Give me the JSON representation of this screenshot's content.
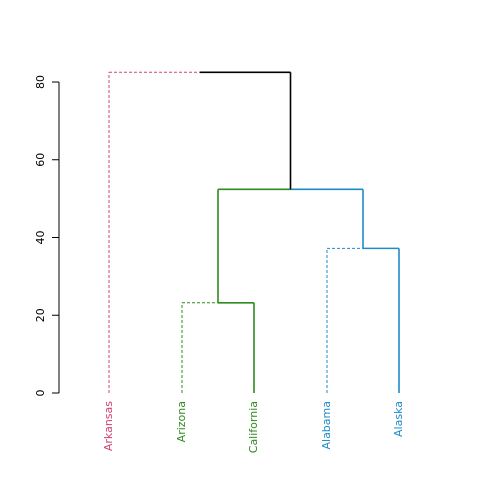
{
  "chart_data": {
    "type": "dendrogram",
    "ylim": [
      0,
      80
    ],
    "y_ticks": [
      0,
      20,
      40,
      60,
      80
    ],
    "leaves": [
      {
        "label": "Arkansas",
        "color": "#d0436f"
      },
      {
        "label": "Arizona",
        "color": "#2e8b1f"
      },
      {
        "label": "California",
        "color": "#2e8b1f"
      },
      {
        "label": "Alabama",
        "color": "#1f8bc9"
      },
      {
        "label": "Alaska",
        "color": "#1f8bc9"
      }
    ],
    "merges": [
      {
        "left": "Arizona",
        "right": "California",
        "height": 23.2
      },
      {
        "left": "Alabama",
        "right": "Alaska",
        "height": 37.2
      },
      {
        "left": "Arizona+California",
        "right": "Alabama+Alaska",
        "height": 52.4
      },
      {
        "left": "Arkansas",
        "right": "Arizona+California+Alabama+Alaska",
        "height": 82.5
      }
    ],
    "colors": {
      "root": "#000000",
      "green": "#2e8b1f",
      "blue": "#1f8bc9",
      "pink": "#d0436f"
    }
  }
}
